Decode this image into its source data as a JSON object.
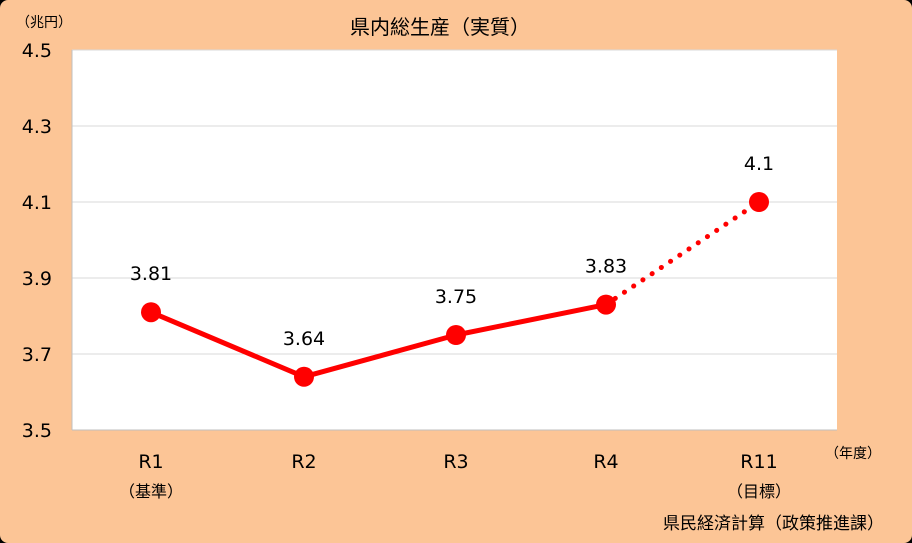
{
  "chart_data": {
    "type": "line",
    "title": "県内総生産（実質）",
    "y_unit": "（兆円）",
    "x_unit": "（年度）",
    "source": "県民経済計算（政策推進課）",
    "categories": [
      "R1",
      "R2",
      "R3",
      "R4",
      "R11"
    ],
    "category_sublabels": [
      "（基準）",
      "",
      "",
      "",
      "（目標）"
    ],
    "values": [
      3.81,
      3.64,
      3.75,
      3.83,
      4.1
    ],
    "data_labels": [
      "3.81",
      "3.64",
      "3.75",
      "3.83",
      "4.1"
    ],
    "y_ticks": [
      "3.5",
      "3.7",
      "3.9",
      "4.1",
      "4.3",
      "4.5"
    ],
    "ylim": [
      3.5,
      4.5
    ],
    "grid": true,
    "projected_from_index": 3,
    "colors": {
      "line": "#ff0000",
      "background": "#fcc596",
      "plot": "#ffffff",
      "grid": "#d9d9d9"
    }
  }
}
